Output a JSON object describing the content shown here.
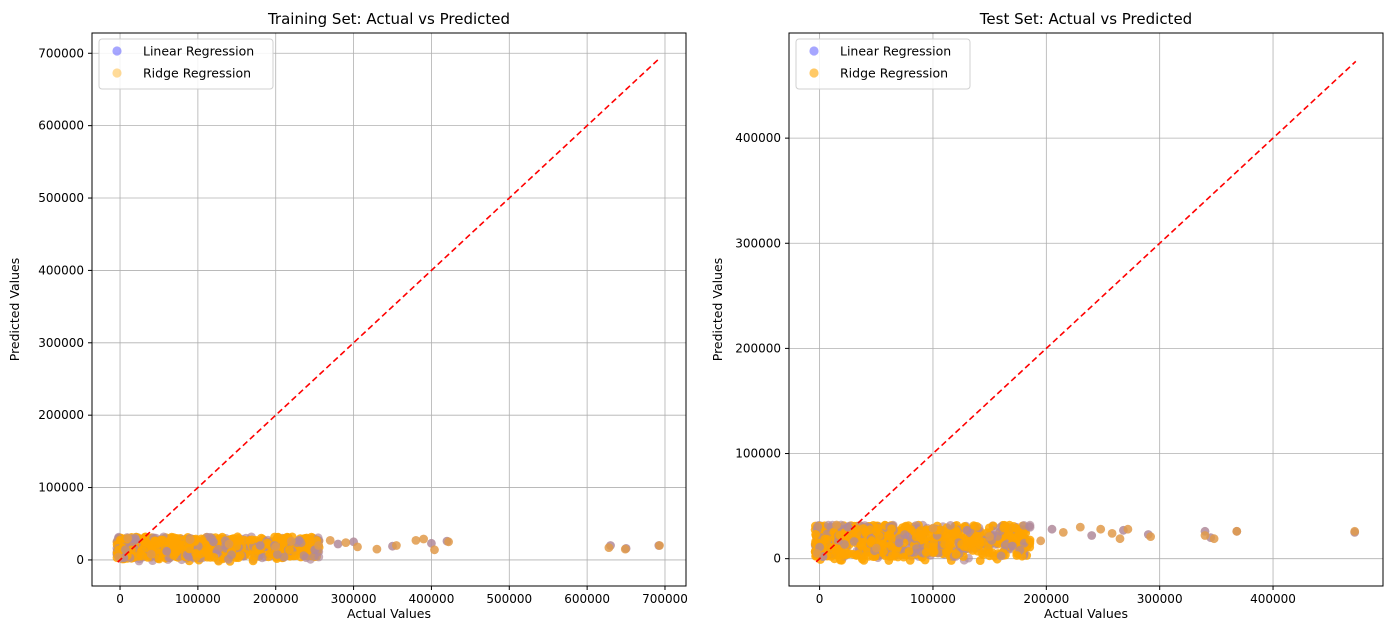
{
  "chart_data": [
    {
      "type": "scatter",
      "title": "Training Set: Actual vs Predicted",
      "xlabel": "Actual Values",
      "ylabel": "Predicted Values",
      "xlim": [
        -36000,
        727000
      ],
      "ylim": [
        -36000,
        728000
      ],
      "xticks": [
        0,
        100000,
        200000,
        300000,
        400000,
        500000,
        600000,
        700000
      ],
      "xtick_labels": [
        "0",
        "100000",
        "200000",
        "300000",
        "400000",
        "500000",
        "600000",
        "700000"
      ],
      "yticks": [
        0,
        100000,
        200000,
        300000,
        400000,
        500000,
        600000,
        700000
      ],
      "ytick_labels": [
        "0",
        "100000",
        "200000",
        "300000",
        "400000",
        "500000",
        "600000",
        "700000"
      ],
      "grid": true,
      "legend_position": "upper-left",
      "reference_line": {
        "style": "dashed",
        "color": "#ff0000",
        "from": [
          -3000,
          -3000
        ],
        "to": [
          693000,
          693000
        ]
      },
      "series": [
        {
          "name": "Linear Regression",
          "color": "#0000ff",
          "alpha": 0.35,
          "points": [
            [
              5000,
              3000
            ],
            [
              20000,
              28000
            ],
            [
              60000,
              12000
            ],
            [
              120000,
              25000
            ],
            [
              180000,
              20000
            ],
            [
              230000,
              27000
            ],
            [
              250000,
              14000
            ],
            [
              280000,
              22000
            ],
            [
              300000,
              25000
            ],
            [
              350000,
              19000
            ],
            [
              400000,
              23000
            ],
            [
              420000,
              26000
            ],
            [
              630000,
              20000
            ],
            [
              650000,
              16000
            ],
            [
              692000,
              20000
            ]
          ]
        },
        {
          "name": "Ridge Regression",
          "color": "#ffa500",
          "alpha": 0.4,
          "points": [
            [
              -2000,
              4000
            ],
            [
              10000,
              30000
            ],
            [
              40000,
              8000
            ],
            [
              90000,
              28000
            ],
            [
              140000,
              22000
            ],
            [
              200000,
              18000
            ],
            [
              220000,
              26000
            ],
            [
              255000,
              20000
            ],
            [
              270000,
              27000
            ],
            [
              290000,
              24000
            ],
            [
              305000,
              18000
            ],
            [
              330000,
              15000
            ],
            [
              355000,
              20000
            ],
            [
              380000,
              27000
            ],
            [
              390000,
              29000
            ],
            [
              404000,
              14000
            ],
            [
              422000,
              25000
            ],
            [
              628000,
              17000
            ],
            [
              649000,
              15000
            ],
            [
              693000,
              20000
            ]
          ]
        }
      ]
    },
    {
      "type": "scatter",
      "title": "Test Set: Actual vs Predicted",
      "xlabel": "Actual Values",
      "ylabel": "Predicted Values",
      "xlim": [
        -27000,
        497000
      ],
      "ylim": [
        -26000,
        500000
      ],
      "xticks": [
        0,
        100000,
        200000,
        300000,
        400000
      ],
      "xtick_labels": [
        "0",
        "100000",
        "200000",
        "300000",
        "400000"
      ],
      "yticks": [
        0,
        100000,
        200000,
        300000,
        400000
      ],
      "ytick_labels": [
        "0",
        "100000",
        "200000",
        "300000",
        "400000"
      ],
      "grid": true,
      "legend_position": "upper-left",
      "reference_line": {
        "style": "dashed",
        "color": "#ff0000",
        "from": [
          -3000,
          -3000
        ],
        "to": [
          473000,
          473000
        ]
      },
      "series": [
        {
          "name": "Linear Regression",
          "color": "#0000ff",
          "alpha": 0.35,
          "points": [
            [
              3000,
              2000
            ],
            [
              25000,
              30000
            ],
            [
              70000,
              15000
            ],
            [
              130000,
              27000
            ],
            [
              170000,
              12000
            ],
            [
              205000,
              28000
            ],
            [
              240000,
              22000
            ],
            [
              268000,
              27000
            ],
            [
              290000,
              23000
            ],
            [
              340000,
              26000
            ],
            [
              345000,
              20000
            ],
            [
              368000,
              26000
            ],
            [
              472000,
              25000
            ]
          ]
        },
        {
          "name": "Ridge Regression",
          "color": "#ffa500",
          "alpha": 0.6,
          "points": [
            [
              -2000,
              5000
            ],
            [
              15000,
              32000
            ],
            [
              50000,
              10000
            ],
            [
              100000,
              29000
            ],
            [
              150000,
              21000
            ],
            [
              195000,
              17000
            ],
            [
              215000,
              25000
            ],
            [
              230000,
              30000
            ],
            [
              248000,
              28000
            ],
            [
              258000,
              24000
            ],
            [
              265000,
              19000
            ],
            [
              272000,
              28000
            ],
            [
              292000,
              21000
            ],
            [
              340000,
              22000
            ],
            [
              348000,
              19000
            ],
            [
              368000,
              26000
            ],
            [
              472000,
              26000
            ]
          ]
        }
      ]
    }
  ]
}
